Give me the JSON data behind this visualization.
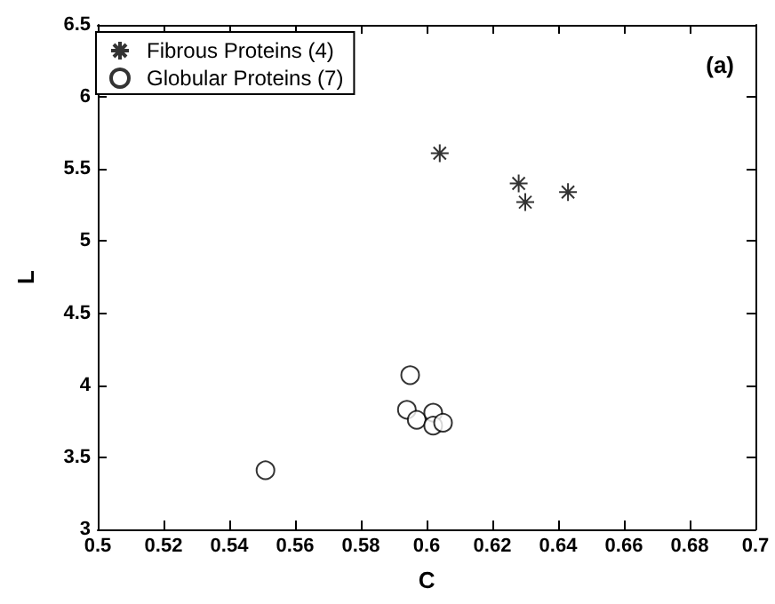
{
  "chart_data": {
    "type": "scatter",
    "xlabel": "C",
    "ylabel": "L",
    "annotations": [
      "(a)"
    ],
    "xlim": [
      0.5,
      0.7
    ],
    "xticks": [
      0.5,
      0.52,
      0.54,
      0.56,
      0.58,
      0.6,
      0.62,
      0.64,
      0.66,
      0.68,
      0.7
    ],
    "ylim": [
      3,
      6.5
    ],
    "yticks": [
      3,
      3.5,
      4,
      4.5,
      5,
      5.5,
      6,
      6.5
    ],
    "grid": false,
    "legend": "top left",
    "series": [
      {
        "name": "Fibrous Proteins (4)",
        "color": "#000000",
        "marker": "cross",
        "x": [
          0.604,
          0.628,
          0.63,
          0.643
        ],
        "values": [
          5.61,
          5.4,
          5.27,
          5.34
        ]
      },
      {
        "name": "Globular Proteins (7)",
        "color": "#000000",
        "marker": "circle",
        "x": [
          0.595,
          0.594,
          0.597,
          0.602,
          0.602,
          0.605,
          0.551
        ],
        "values": [
          4.07,
          3.83,
          3.76,
          3.81,
          3.72,
          3.74,
          3.41
        ]
      }
    ]
  }
}
